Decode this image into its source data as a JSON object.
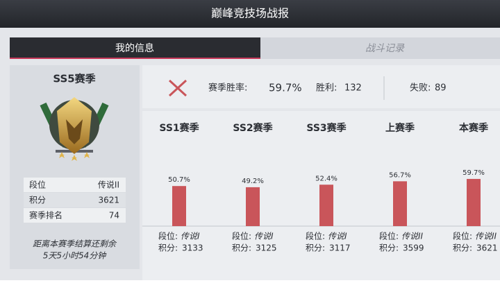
{
  "header": {
    "title": "巅峰竞技场战报"
  },
  "tabs": [
    "我的信息",
    "战斗记录"
  ],
  "profile": {
    "season": "SS5赛季",
    "rows": [
      [
        "段位",
        "传说II"
      ],
      [
        "积分",
        "3621"
      ],
      [
        "赛季排名",
        "74"
      ]
    ],
    "countdown": [
      "距离本赛季结算还剩余",
      "5天5小时54分钟"
    ]
  },
  "summary": {
    "win_rate_label": "赛季胜率:",
    "win_rate": "59.7%",
    "wins_label": "胜利:",
    "wins": "132",
    "losses_label": "失败:",
    "losses": "89"
  },
  "chart_data": {
    "type": "bar",
    "categories": [
      "SS1赛季",
      "SS2赛季",
      "SS3赛季",
      "上赛季",
      "本赛季"
    ],
    "values": [
      50.7,
      49.2,
      52.4,
      56.7,
      59.7
    ],
    "value_labels": [
      "50.7%",
      "49.2%",
      "52.4%",
      "56.7%",
      "59.7%"
    ],
    "color": "#c9555a"
  },
  "seasons": [
    {
      "rank_label": "段位:",
      "rank": "传说I",
      "points_label": "积分:",
      "points": "3133"
    },
    {
      "rank_label": "段位:",
      "rank": "传说I",
      "points_label": "积分:",
      "points": "3125"
    },
    {
      "rank_label": "段位:",
      "rank": "传说I",
      "points_label": "积分:",
      "points": "3117"
    },
    {
      "rank_label": "段位:",
      "rank": "传说II",
      "points_label": "积分:",
      "points": "3599"
    },
    {
      "rank_label": "段位:",
      "rank": "传说II",
      "points_label": "积分:",
      "points": "3621"
    }
  ]
}
